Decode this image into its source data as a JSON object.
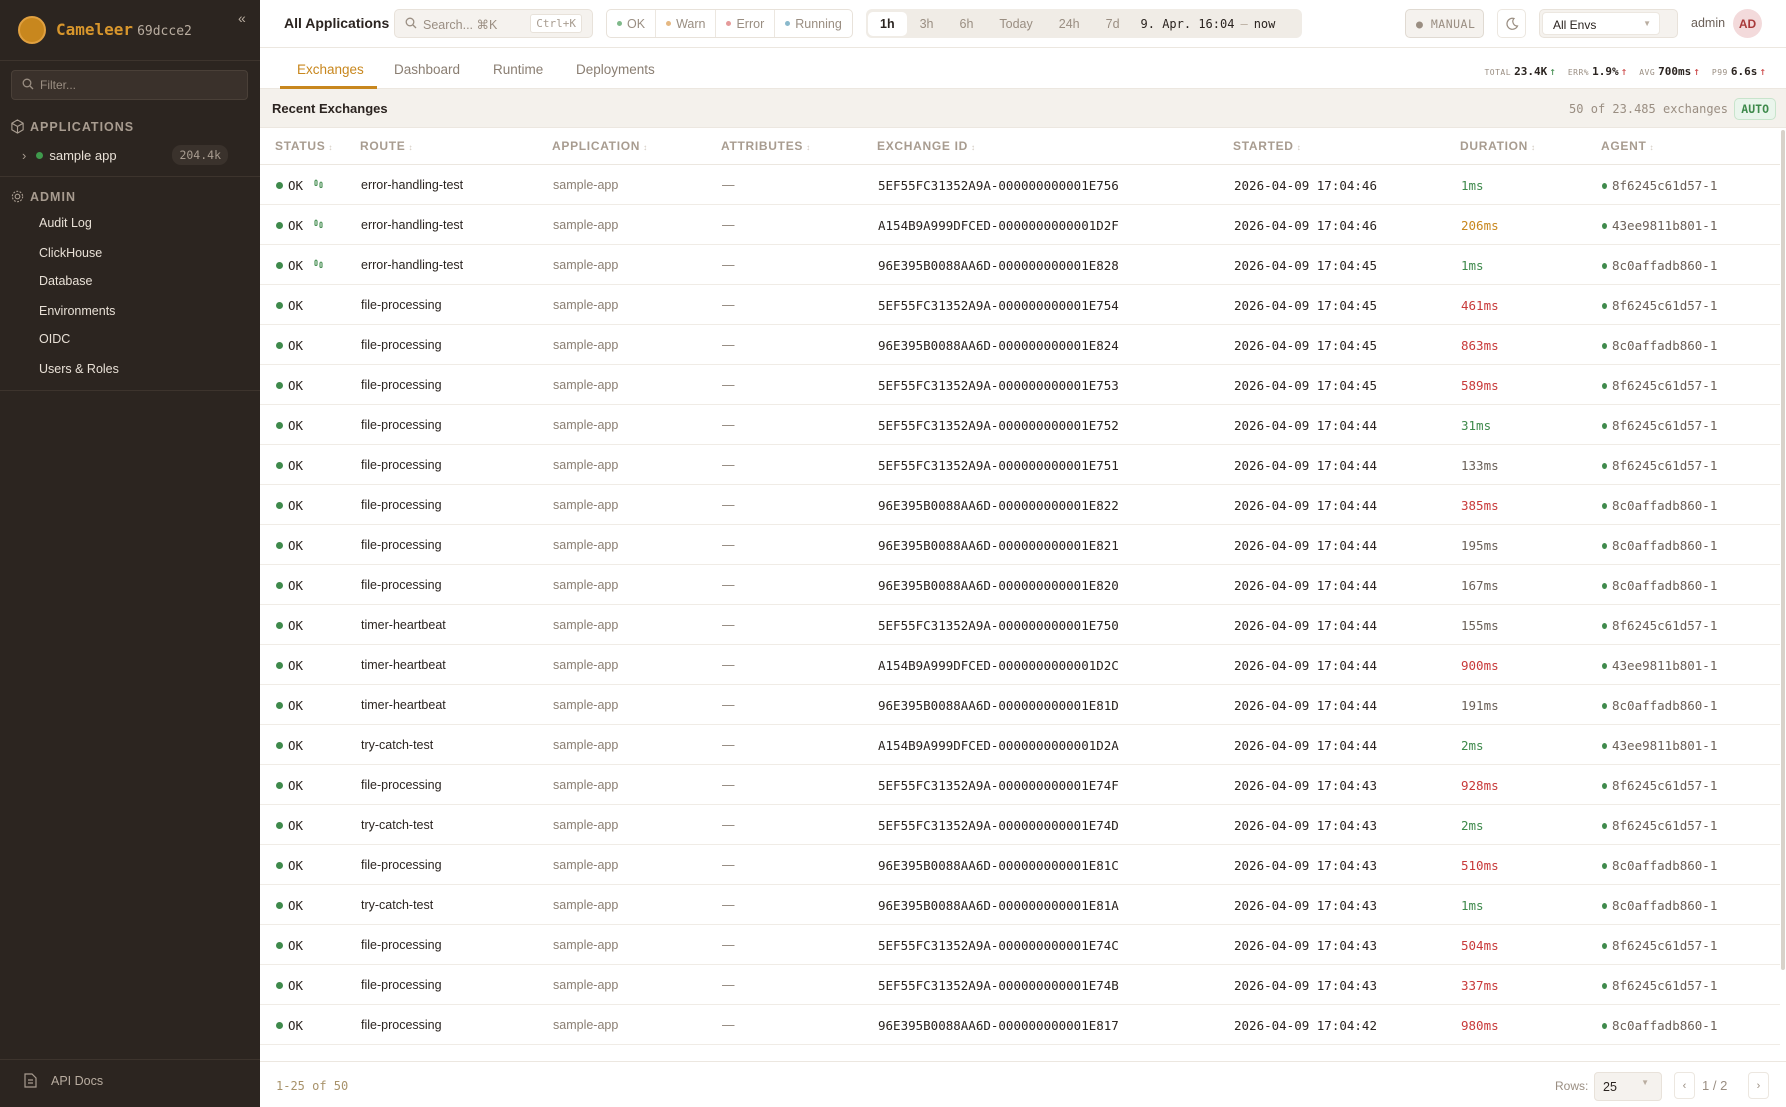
{
  "sidebar": {
    "brand": "Cameleer",
    "version": "69dcce2",
    "filter_placeholder": "Filter...",
    "applications_label": "APPLICATIONS",
    "apps": [
      {
        "name": "sample app",
        "count": "204.4k",
        "status_color": "#3f9a4c"
      }
    ],
    "admin_label": "ADMIN",
    "admin_items": [
      "Audit Log",
      "ClickHouse",
      "Database",
      "Environments",
      "OIDC",
      "Users & Roles"
    ],
    "api_docs": "API Docs"
  },
  "topbar": {
    "title": "All Applications",
    "search_placeholder": "Search... ⌘K",
    "search_shortcut": "Ctrl+K",
    "status_filters": [
      {
        "label": "OK",
        "color": "#7fb98a"
      },
      {
        "label": "Warn",
        "color": "#e5b882"
      },
      {
        "label": "Error",
        "color": "#e59a9a"
      },
      {
        "label": "Running",
        "color": "#8ab9cc"
      }
    ],
    "time_buttons": [
      "1h",
      "3h",
      "6h",
      "Today",
      "24h",
      "7d"
    ],
    "active_time": "1h",
    "range_start": "9. Apr. 16:04",
    "range_sep": "–",
    "range_end": "now",
    "refresh_mode": "● MANUAL",
    "env_select": "All Envs",
    "user": "admin",
    "avatar": "AD"
  },
  "tabs": [
    "Exchanges",
    "Dashboard",
    "Runtime",
    "Deployments"
  ],
  "active_tab": "Exchanges",
  "stats": [
    {
      "label": "TOTAL",
      "value": "23.4K",
      "trend": "up",
      "color": "#3f8a4c"
    },
    {
      "label": "ERR%",
      "value": "1.9%",
      "trend": "up",
      "color": "#c83a3a"
    },
    {
      "label": "AVG",
      "value": "700ms",
      "trend": "up",
      "color": "#c83a3a"
    },
    {
      "label": "P99",
      "value": "6.6s",
      "trend": "up",
      "color": "#c83a3a"
    }
  ],
  "section": {
    "title": "Recent Exchanges",
    "count": "50 of 23.485 exchanges",
    "auto": "AUTO"
  },
  "columns": [
    "STATUS",
    "ROUTE",
    "APPLICATION",
    "ATTRIBUTES",
    "EXCHANGE ID",
    "STARTED",
    "DURATION",
    "AGENT"
  ],
  "rows": [
    {
      "status": "OK",
      "icon": true,
      "route": "error-handling-test",
      "app": "sample-app",
      "attr": "—",
      "id": "5EF55FC31352A9A-000000000001E756",
      "started": "2026-04-09 17:04:46",
      "duration": "1ms",
      "dur_level": "fast",
      "agent": "8f6245c61d57-1"
    },
    {
      "status": "OK",
      "icon": true,
      "route": "error-handling-test",
      "app": "sample-app",
      "attr": "—",
      "id": "A154B9A999DFCED-0000000000001D2F",
      "started": "2026-04-09 17:04:46",
      "duration": "206ms",
      "dur_level": "warn",
      "agent": "43ee9811b801-1"
    },
    {
      "status": "OK",
      "icon": true,
      "route": "error-handling-test",
      "app": "sample-app",
      "attr": "—",
      "id": "96E395B0088AA6D-000000000001E828",
      "started": "2026-04-09 17:04:45",
      "duration": "1ms",
      "dur_level": "fast",
      "agent": "8c0affadb860-1"
    },
    {
      "status": "OK",
      "route": "file-processing",
      "app": "sample-app",
      "attr": "—",
      "id": "5EF55FC31352A9A-000000000001E754",
      "started": "2026-04-09 17:04:45",
      "duration": "461ms",
      "dur_level": "slow",
      "agent": "8f6245c61d57-1"
    },
    {
      "status": "OK",
      "route": "file-processing",
      "app": "sample-app",
      "attr": "—",
      "id": "96E395B0088AA6D-000000000001E824",
      "started": "2026-04-09 17:04:45",
      "duration": "863ms",
      "dur_level": "slow",
      "agent": "8c0affadb860-1"
    },
    {
      "status": "OK",
      "route": "file-processing",
      "app": "sample-app",
      "attr": "—",
      "id": "5EF55FC31352A9A-000000000001E753",
      "started": "2026-04-09 17:04:45",
      "duration": "589ms",
      "dur_level": "slow",
      "agent": "8f6245c61d57-1"
    },
    {
      "status": "OK",
      "route": "file-processing",
      "app": "sample-app",
      "attr": "—",
      "id": "5EF55FC31352A9A-000000000001E752",
      "started": "2026-04-09 17:04:44",
      "duration": "31ms",
      "dur_level": "fast",
      "agent": "8f6245c61d57-1"
    },
    {
      "status": "OK",
      "route": "file-processing",
      "app": "sample-app",
      "attr": "—",
      "id": "5EF55FC31352A9A-000000000001E751",
      "started": "2026-04-09 17:04:44",
      "duration": "133ms",
      "dur_level": "normal",
      "agent": "8f6245c61d57-1"
    },
    {
      "status": "OK",
      "route": "file-processing",
      "app": "sample-app",
      "attr": "—",
      "id": "96E395B0088AA6D-000000000001E822",
      "started": "2026-04-09 17:04:44",
      "duration": "385ms",
      "dur_level": "slow",
      "agent": "8c0affadb860-1"
    },
    {
      "status": "OK",
      "route": "file-processing",
      "app": "sample-app",
      "attr": "—",
      "id": "96E395B0088AA6D-000000000001E821",
      "started": "2026-04-09 17:04:44",
      "duration": "195ms",
      "dur_level": "normal",
      "agent": "8c0affadb860-1"
    },
    {
      "status": "OK",
      "route": "file-processing",
      "app": "sample-app",
      "attr": "—",
      "id": "96E395B0088AA6D-000000000001E820",
      "started": "2026-04-09 17:04:44",
      "duration": "167ms",
      "dur_level": "normal",
      "agent": "8c0affadb860-1"
    },
    {
      "status": "OK",
      "route": "timer-heartbeat",
      "app": "sample-app",
      "attr": "—",
      "id": "5EF55FC31352A9A-000000000001E750",
      "started": "2026-04-09 17:04:44",
      "duration": "155ms",
      "dur_level": "normal",
      "agent": "8f6245c61d57-1"
    },
    {
      "status": "OK",
      "route": "timer-heartbeat",
      "app": "sample-app",
      "attr": "—",
      "id": "A154B9A999DFCED-0000000000001D2C",
      "started": "2026-04-09 17:04:44",
      "duration": "900ms",
      "dur_level": "slow",
      "agent": "43ee9811b801-1"
    },
    {
      "status": "OK",
      "route": "timer-heartbeat",
      "app": "sample-app",
      "attr": "—",
      "id": "96E395B0088AA6D-000000000001E81D",
      "started": "2026-04-09 17:04:44",
      "duration": "191ms",
      "dur_level": "normal",
      "agent": "8c0affadb860-1"
    },
    {
      "status": "OK",
      "route": "try-catch-test",
      "app": "sample-app",
      "attr": "—",
      "id": "A154B9A999DFCED-0000000000001D2A",
      "started": "2026-04-09 17:04:44",
      "duration": "2ms",
      "dur_level": "fast",
      "agent": "43ee9811b801-1"
    },
    {
      "status": "OK",
      "route": "file-processing",
      "app": "sample-app",
      "attr": "—",
      "id": "5EF55FC31352A9A-000000000001E74F",
      "started": "2026-04-09 17:04:43",
      "duration": "928ms",
      "dur_level": "slow",
      "agent": "8f6245c61d57-1"
    },
    {
      "status": "OK",
      "route": "try-catch-test",
      "app": "sample-app",
      "attr": "—",
      "id": "5EF55FC31352A9A-000000000001E74D",
      "started": "2026-04-09 17:04:43",
      "duration": "2ms",
      "dur_level": "fast",
      "agent": "8f6245c61d57-1"
    },
    {
      "status": "OK",
      "route": "file-processing",
      "app": "sample-app",
      "attr": "—",
      "id": "96E395B0088AA6D-000000000001E81C",
      "started": "2026-04-09 17:04:43",
      "duration": "510ms",
      "dur_level": "slow",
      "agent": "8c0affadb860-1"
    },
    {
      "status": "OK",
      "route": "try-catch-test",
      "app": "sample-app",
      "attr": "—",
      "id": "96E395B0088AA6D-000000000001E81A",
      "started": "2026-04-09 17:04:43",
      "duration": "1ms",
      "dur_level": "fast",
      "agent": "8c0affadb860-1"
    },
    {
      "status": "OK",
      "route": "file-processing",
      "app": "sample-app",
      "attr": "—",
      "id": "5EF55FC31352A9A-000000000001E74C",
      "started": "2026-04-09 17:04:43",
      "duration": "504ms",
      "dur_level": "slow",
      "agent": "8f6245c61d57-1"
    },
    {
      "status": "OK",
      "route": "file-processing",
      "app": "sample-app",
      "attr": "—",
      "id": "5EF55FC31352A9A-000000000001E74B",
      "started": "2026-04-09 17:04:43",
      "duration": "337ms",
      "dur_level": "slow",
      "agent": "8f6245c61d57-1"
    },
    {
      "status": "OK",
      "route": "file-processing",
      "app": "sample-app",
      "attr": "—",
      "id": "96E395B0088AA6D-000000000001E817",
      "started": "2026-04-09 17:04:42",
      "duration": "980ms",
      "dur_level": "slow",
      "agent": "8c0affadb860-1"
    }
  ],
  "footer": {
    "range": "1-25 of 50",
    "rows_label": "Rows:",
    "rows_value": "25",
    "page": "1",
    "page_sep": "/",
    "pages": "2",
    "prev": "‹",
    "next": "›"
  }
}
